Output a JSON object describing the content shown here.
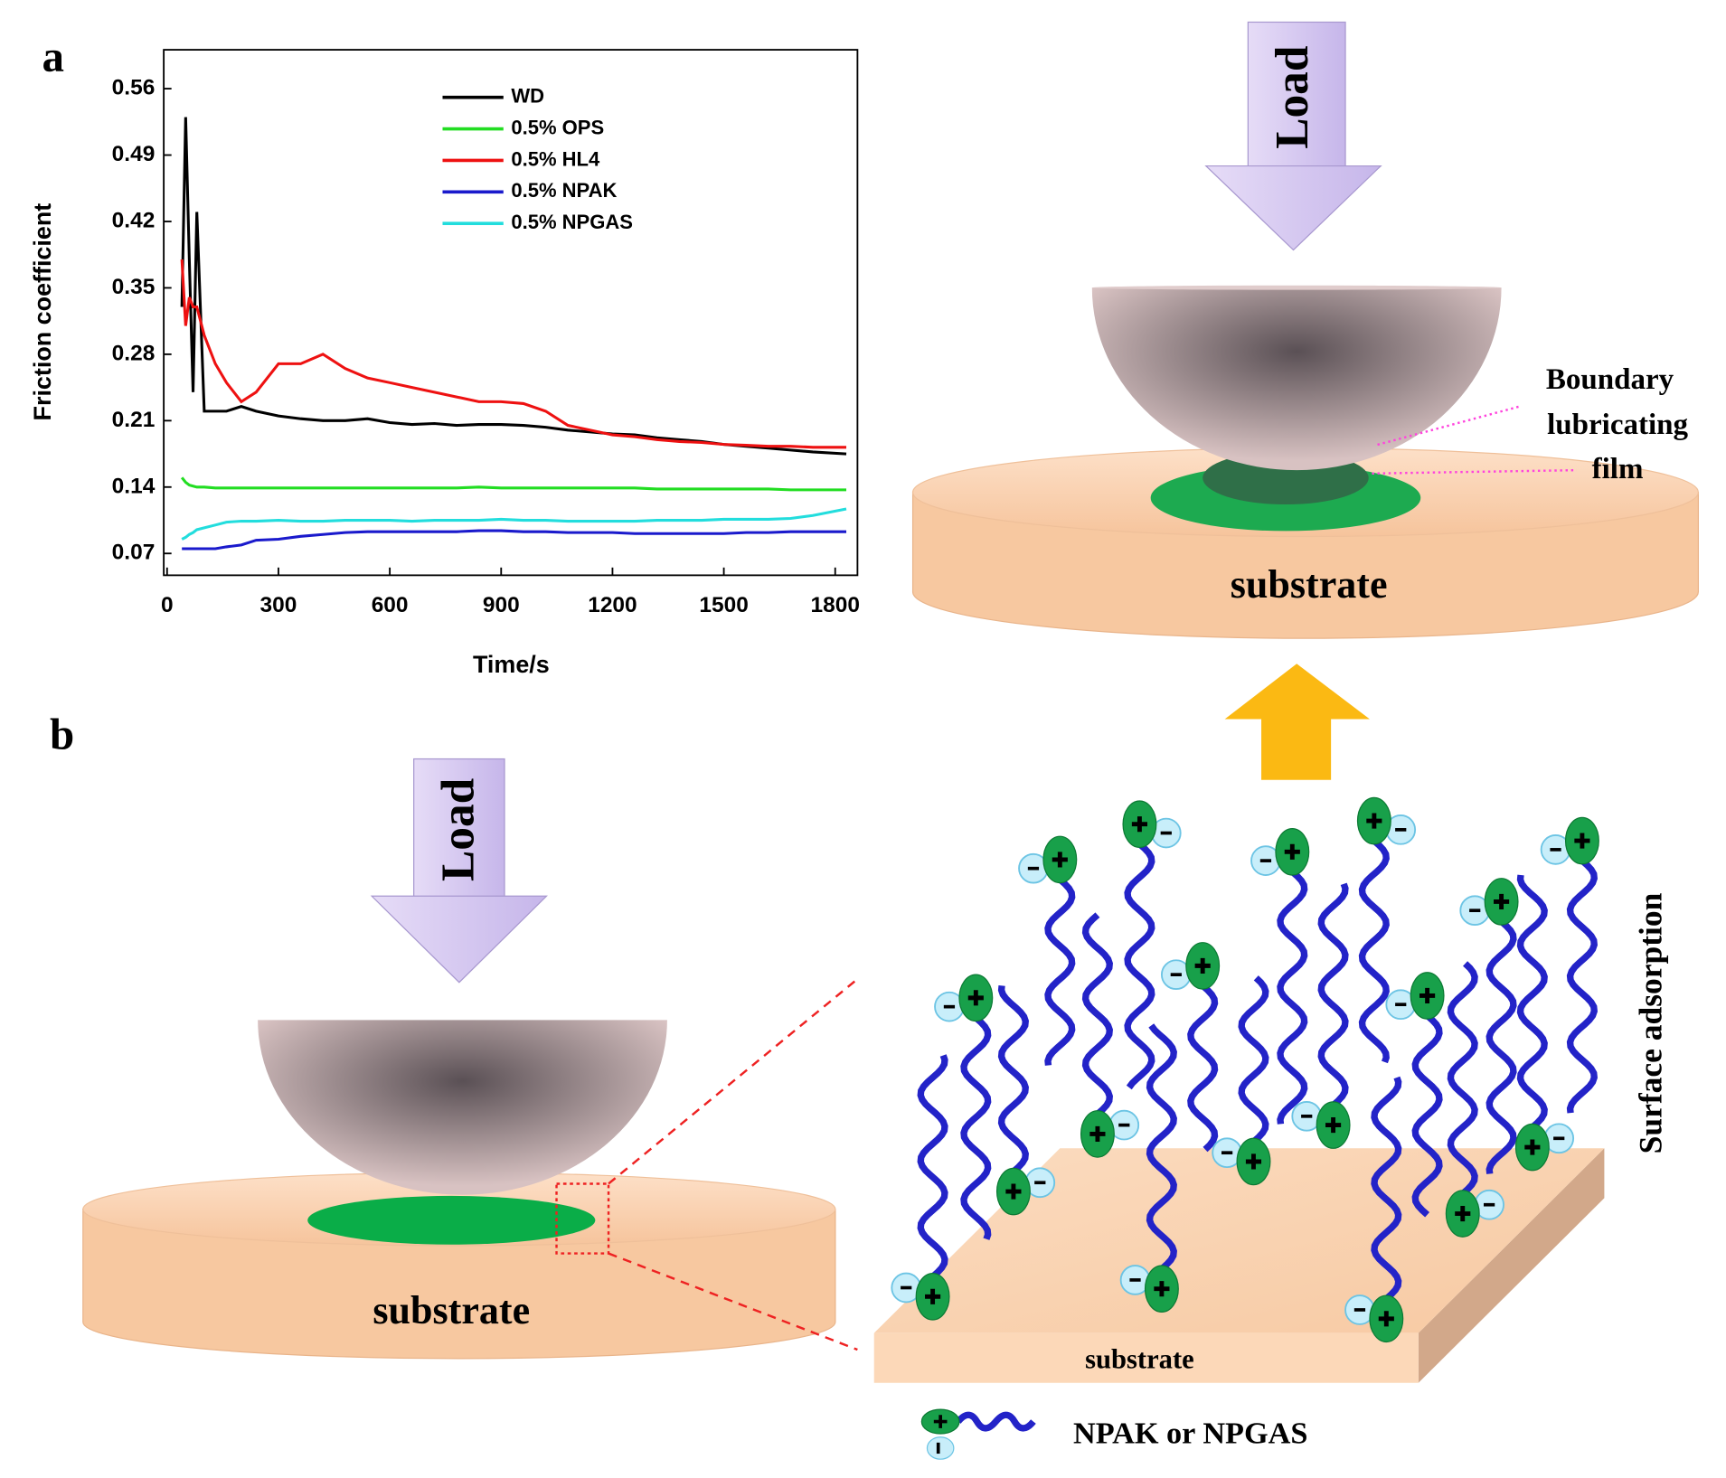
{
  "chart_data": {
    "type": "line",
    "x_label": "Time/s",
    "y_label": "Friction coefficient",
    "x": [
      40,
      50,
      60,
      70,
      80,
      100,
      130,
      160,
      200,
      240,
      300,
      360,
      420,
      480,
      540,
      600,
      660,
      720,
      780,
      840,
      900,
      960,
      1020,
      1080,
      1140,
      1200,
      1260,
      1320,
      1380,
      1440,
      1500,
      1560,
      1620,
      1680,
      1740,
      1830
    ],
    "series": [
      {
        "name": "WD",
        "color": "#000000",
        "values": [
          0.33,
          0.53,
          0.38,
          0.24,
          0.43,
          0.22,
          0.22,
          0.22,
          0.225,
          0.22,
          0.215,
          0.212,
          0.21,
          0.21,
          0.212,
          0.208,
          0.206,
          0.207,
          0.205,
          0.206,
          0.206,
          0.205,
          0.203,
          0.2,
          0.198,
          0.196,
          0.195,
          0.192,
          0.19,
          0.188,
          0.185,
          0.183,
          0.181,
          0.179,
          0.177,
          0.175
        ]
      },
      {
        "name": "0.5% OPS",
        "color": "#22dd22",
        "values": [
          0.15,
          0.145,
          0.142,
          0.141,
          0.14,
          0.14,
          0.139,
          0.139,
          0.139,
          0.139,
          0.139,
          0.139,
          0.139,
          0.139,
          0.139,
          0.139,
          0.139,
          0.139,
          0.139,
          0.14,
          0.139,
          0.139,
          0.139,
          0.139,
          0.139,
          0.139,
          0.139,
          0.138,
          0.138,
          0.138,
          0.138,
          0.138,
          0.138,
          0.137,
          0.137,
          0.137
        ]
      },
      {
        "name": "0.5% HL4",
        "color": "#ee1111",
        "values": [
          0.38,
          0.31,
          0.34,
          0.33,
          0.33,
          0.3,
          0.27,
          0.25,
          0.23,
          0.24,
          0.27,
          0.27,
          0.28,
          0.265,
          0.255,
          0.25,
          0.245,
          0.24,
          0.235,
          0.23,
          0.23,
          0.228,
          0.22,
          0.205,
          0.2,
          0.195,
          0.193,
          0.19,
          0.188,
          0.187,
          0.185,
          0.184,
          0.183,
          0.183,
          0.182,
          0.182
        ]
      },
      {
        "name": "0.5% NPAK",
        "color": "#1a1acc",
        "values": [
          0.075,
          0.075,
          0.075,
          0.075,
          0.075,
          0.075,
          0.075,
          0.077,
          0.079,
          0.084,
          0.085,
          0.088,
          0.09,
          0.092,
          0.093,
          0.093,
          0.093,
          0.093,
          0.093,
          0.094,
          0.094,
          0.093,
          0.093,
          0.092,
          0.092,
          0.092,
          0.091,
          0.091,
          0.091,
          0.091,
          0.091,
          0.092,
          0.092,
          0.093,
          0.093,
          0.093
        ]
      },
      {
        "name": "0.5% NPGAS",
        "color": "#22dddd",
        "values": [
          0.085,
          0.087,
          0.09,
          0.092,
          0.095,
          0.097,
          0.1,
          0.103,
          0.104,
          0.104,
          0.105,
          0.104,
          0.104,
          0.105,
          0.105,
          0.105,
          0.104,
          0.105,
          0.105,
          0.105,
          0.106,
          0.105,
          0.105,
          0.104,
          0.104,
          0.104,
          0.104,
          0.105,
          0.105,
          0.105,
          0.106,
          0.106,
          0.106,
          0.107,
          0.11,
          0.117
        ]
      }
    ],
    "xlim": [
      -9,
      1860
    ],
    "xticks": [
      0,
      300,
      600,
      900,
      1200,
      1500,
      1800
    ],
    "ylim": [
      0.047,
      0.601
    ],
    "yticks": [
      0.07,
      0.14,
      0.21,
      0.28,
      0.35,
      0.42,
      0.49,
      0.56
    ],
    "legend": "upper-left"
  },
  "panels": [
    "a",
    "b"
  ],
  "top_diagram": {
    "load": "Load",
    "substrate": "substrate",
    "film_label": [
      "Boundary",
      "lubricating",
      "film"
    ]
  },
  "bottom_diagram": {
    "load": "Load",
    "substrate": "substrate",
    "slab_label": "substrate",
    "side_label": "Surface adsorption",
    "legend": "NPAK or NPGAS"
  }
}
